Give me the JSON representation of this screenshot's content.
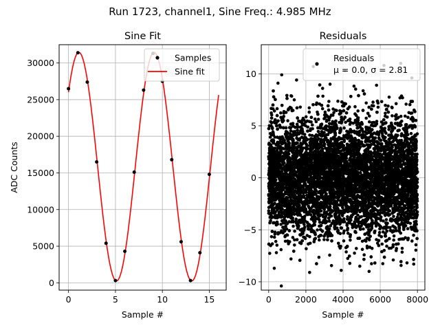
{
  "figure": {
    "suptitle": "Run 1723, channel1, Sine Freq.: 4.985 MHz"
  },
  "chart_data": [
    {
      "type": "line",
      "title": "Sine Fit",
      "xlabel": "Sample #",
      "ylabel": "ADC Counts",
      "xlim": [
        -1.0,
        16.8
      ],
      "ylim": [
        -1000,
        32500
      ],
      "xticks": [
        0,
        5,
        10,
        15
      ],
      "yticks": [
        0,
        5000,
        10000,
        15000,
        20000,
        25000,
        30000
      ],
      "grid": true,
      "legend_position": "top-right",
      "colors": {
        "samples": "#000000",
        "fit": "#ff0000"
      },
      "series": [
        {
          "name": "Samples",
          "style": "points",
          "x": [
            0,
            1,
            2,
            3,
            4,
            5,
            6,
            7,
            8,
            9,
            10,
            11,
            12,
            13,
            14,
            15
          ],
          "y": [
            26500,
            31400,
            27400,
            16500,
            5400,
            300,
            4300,
            15100,
            26300,
            31300,
            27500,
            16800,
            5600,
            300,
            4100,
            14800
          ]
        },
        {
          "name": "Sine fit",
          "style": "line",
          "function": "sine",
          "amplitude": 15600,
          "offset": 15850,
          "period_samples": 8.02,
          "peak_at_sample": 1.1,
          "x_range": [
            0,
            16
          ]
        }
      ]
    },
    {
      "type": "scatter",
      "title": "Residuals",
      "xlabel": "Sample #",
      "ylabel": "",
      "xlim": [
        -400,
        8400
      ],
      "ylim": [
        -10.8,
        12.8
      ],
      "xticks": [
        0,
        2000,
        4000,
        6000,
        8000
      ],
      "yticks": [
        -10,
        -5,
        0,
        5,
        10
      ],
      "grid": true,
      "legend_position": "top-right",
      "colors": {
        "points": "#000000"
      },
      "series": [
        {
          "name": "Residuals",
          "legend_text": [
            "Residuals",
            "μ = 0.0, σ = 2.81"
          ],
          "n_points": 8000,
          "mean": 0.0,
          "std": 2.81,
          "x_range": [
            0,
            8000
          ],
          "outliers": [
            [
              700,
              9.9
            ],
            [
              680,
              -10.4
            ],
            [
              2200,
              -9.1
            ],
            [
              3900,
              -8.9
            ],
            [
              5400,
              -9.0
            ],
            [
              6200,
              10.8
            ],
            [
              7100,
              11.0
            ],
            [
              2400,
              10.7
            ],
            [
              4100,
              10.3
            ],
            [
              1500,
              9.4
            ],
            [
              300,
              -8.7
            ],
            [
              4900,
              -8.5
            ],
            [
              7800,
              -8.3
            ],
            [
              2900,
              8.6
            ],
            [
              5800,
              8.9
            ],
            [
              1200,
              -7.8
            ],
            [
              6700,
              -7.9
            ],
            [
              3300,
              9.0
            ],
            [
              7700,
              9.6
            ],
            [
              500,
              9.1
            ]
          ]
        }
      ]
    }
  ]
}
